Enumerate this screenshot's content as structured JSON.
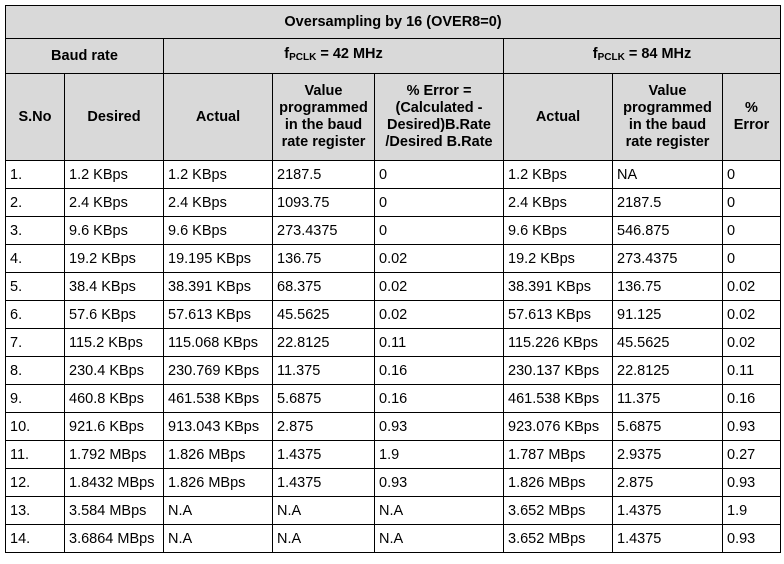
{
  "header": {
    "oversampling": "Oversampling by 16 (OVER8=0)",
    "baud_rate": "Baud rate",
    "fpclk1": {
      "f": "f",
      "sub": "PCLK",
      "rest": " = 42 MHz"
    },
    "fpclk2": {
      "f": "f",
      "sub": "PCLK",
      "rest": " = 84 MHz"
    },
    "columns": [
      "S.No",
      "Desired",
      "Actual",
      "Value programmed in the baud rate register",
      "% Error = (Calculated - Desired)B.Rate /Desired B.Rate",
      "Actual",
      "Value programmed in the baud rate register",
      "% Error"
    ]
  },
  "rows": [
    [
      "1.",
      "1.2 KBps",
      "1.2 KBps",
      "2187.5",
      "0",
      "1.2 KBps",
      "NA",
      "0"
    ],
    [
      "2.",
      "2.4 KBps",
      "2.4 KBps",
      "1093.75",
      "0",
      "2.4 KBps",
      "2187.5",
      "0"
    ],
    [
      "3.",
      "9.6 KBps",
      "9.6 KBps",
      "273.4375",
      "0",
      "9.6 KBps",
      "546.875",
      "0"
    ],
    [
      "4.",
      "19.2 KBps",
      "19.195 KBps",
      "136.75",
      "0.02",
      "19.2 KBps",
      "273.4375",
      "0"
    ],
    [
      "5.",
      "38.4 KBps",
      "38.391 KBps",
      "68.375",
      "0.02",
      "38.391 KBps",
      "136.75",
      "0.02"
    ],
    [
      "6.",
      "57.6 KBps",
      "57.613 KBps",
      "45.5625",
      "0.02",
      "57.613 KBps",
      "91.125",
      "0.02"
    ],
    [
      "7.",
      "115.2 KBps",
      "115.068 KBps",
      "22.8125",
      "0.11",
      "115.226 KBps",
      "45.5625",
      "0.02"
    ],
    [
      "8.",
      "230.4 KBps",
      "230.769 KBps",
      "11.375",
      "0.16",
      "230.137 KBps",
      "22.8125",
      "0.11"
    ],
    [
      "9.",
      "460.8 KBps",
      "461.538 KBps",
      "5.6875",
      "0.16",
      "461.538 KBps",
      "11.375",
      "0.16"
    ],
    [
      "10.",
      "921.6 KBps",
      "913.043 KBps",
      "2.875",
      "0.93",
      "923.076 KBps",
      "5.6875",
      "0.93"
    ],
    [
      "11.",
      "1.792 MBps",
      "1.826 MBps",
      "1.4375",
      "1.9",
      "1.787 MBps",
      "2.9375",
      "0.27"
    ],
    [
      "12.",
      "1.8432 MBps",
      "1.826 MBps",
      "1.4375",
      "0.93",
      "1.826 MBps",
      "2.875",
      "0.93"
    ],
    [
      "13.",
      "3.584 MBps",
      "N.A",
      "N.A",
      "N.A",
      "3.652 MBps",
      "1.4375",
      "1.9"
    ],
    [
      "14.",
      "3.6864 MBps",
      "N.A",
      "N.A",
      "N.A",
      "3.652 MBps",
      "1.4375",
      "0.93"
    ]
  ]
}
